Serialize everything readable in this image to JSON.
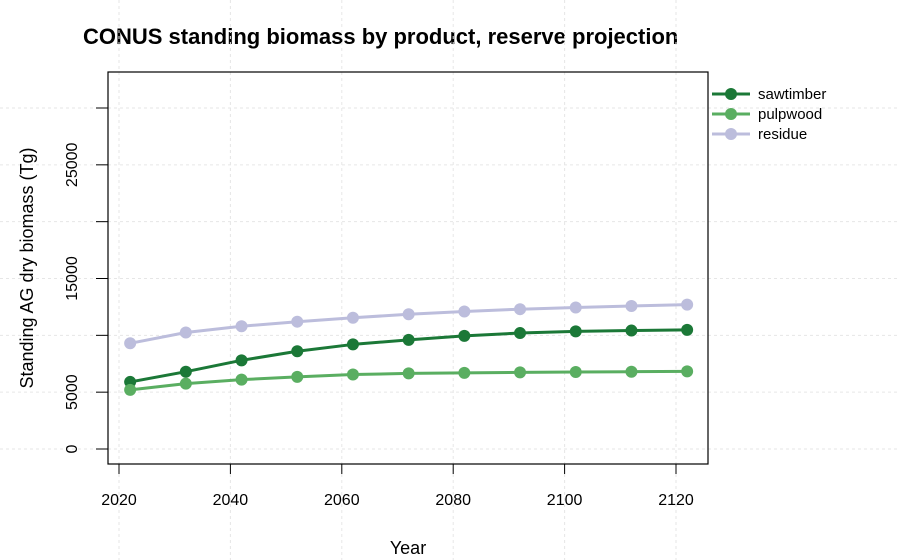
{
  "chart_data": {
    "type": "line",
    "title": "CONUS standing biomass by product, reserve projection",
    "xlabel": "Year",
    "ylabel": "Standing AG dry biomass (Tg)",
    "x": [
      2022,
      2032,
      2042,
      2052,
      2062,
      2072,
      2082,
      2092,
      2102,
      2112,
      2122
    ],
    "xlim": [
      2020,
      2122
    ],
    "ylim": [
      0,
      30000
    ],
    "xticks": [
      "2020",
      "2040",
      "2060",
      "2080",
      "2100",
      "2120"
    ],
    "yticks": [
      "0",
      "5000",
      "15000",
      "25000"
    ],
    "grid": true,
    "legend_position": "outside-right",
    "series": [
      {
        "name": "sawtimber",
        "color": "#1b7837",
        "values": [
          5900,
          6800,
          7800,
          8600,
          9200,
          9600,
          9950,
          10200,
          10350,
          10420,
          10480
        ]
      },
      {
        "name": "pulpwood",
        "color": "#5aae61",
        "values": [
          5200,
          5750,
          6100,
          6350,
          6550,
          6650,
          6700,
          6740,
          6770,
          6800,
          6830
        ]
      },
      {
        "name": "residue",
        "color": "#bcbddc",
        "values": [
          9300,
          10250,
          10800,
          11200,
          11550,
          11850,
          12100,
          12300,
          12450,
          12580,
          12700
        ]
      }
    ]
  }
}
